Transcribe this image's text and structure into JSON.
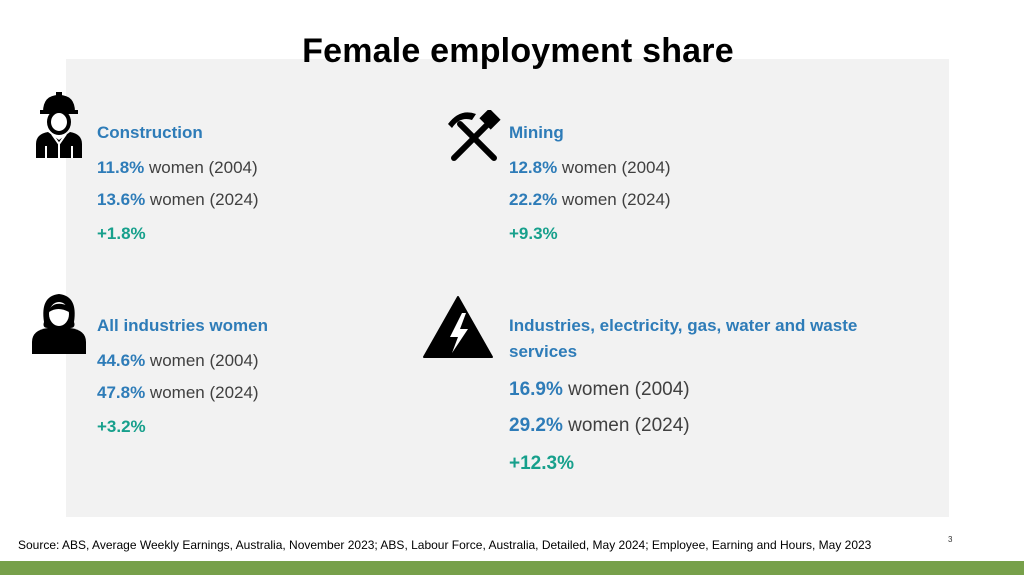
{
  "title": "Female employment share",
  "cards": [
    {
      "icon": "construction-worker-icon",
      "heading": "Construction",
      "lines": [
        {
          "pct": "11.8%",
          "text": " women (2004)"
        },
        {
          "pct": "13.6%",
          "text": " women (2024)"
        }
      ],
      "change": "+1.8%"
    },
    {
      "icon": "hammer-pick-icon",
      "heading": "Mining",
      "lines": [
        {
          "pct": "12.8%",
          "text": " women (2004)"
        },
        {
          "pct": "22.2%",
          "text": " women (2024)"
        }
      ],
      "change": "+9.3%"
    },
    {
      "icon": "woman-icon",
      "heading": "All industries women",
      "lines": [
        {
          "pct": "44.6%",
          "text": " women (2004)"
        },
        {
          "pct": "47.8%",
          "text": " women (2024)"
        }
      ],
      "change": "+3.2%"
    },
    {
      "icon": "high-voltage-icon",
      "heading": "Industries, electricity, gas, water and waste services",
      "lines": [
        {
          "pct": "16.9%",
          "text": " women (2004)"
        },
        {
          "pct": "29.2%",
          "text": " women (2024)"
        }
      ],
      "change": "+12.3%"
    }
  ],
  "source": "Source: ABS, Average Weekly Earnings, Australia, November 2023; ABS, Labour Force, Australia, Detailed, May 2024; Employee, Earning and Hours, May 2023",
  "page_number": "3",
  "colors": {
    "heading": "#2e7cb8",
    "change": "#17a08c",
    "panel": "#f2f2f2",
    "footer_bar": "#77a04a"
  }
}
